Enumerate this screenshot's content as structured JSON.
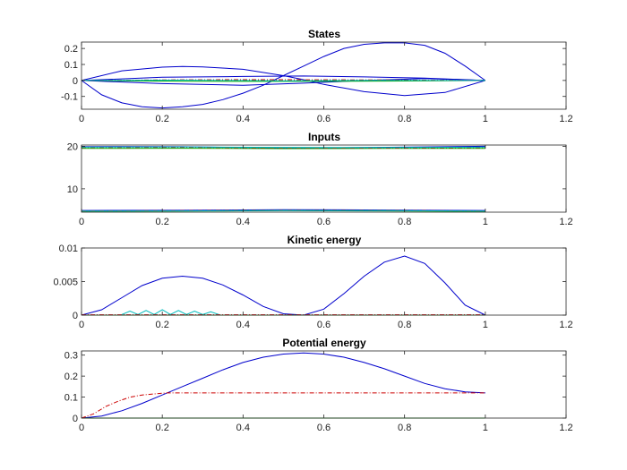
{
  "chart_data": [
    {
      "type": "line",
      "title": "States",
      "xlabel": "",
      "ylabel": "",
      "xlim": [
        0,
        1.2
      ],
      "ylim": [
        -0.18,
        0.24
      ],
      "xticks": [
        0,
        0.2,
        0.4,
        0.6,
        0.8,
        1,
        1.2
      ],
      "yticks": [
        -0.1,
        0,
        0.1,
        0.2
      ],
      "xtick_labels": [
        "0",
        "0.2",
        "0.4",
        "0.6",
        "0.8",
        "1",
        "1.2"
      ],
      "ytick_labels": [
        "-0.1",
        "0",
        "0.1",
        "0.2"
      ],
      "grid": false,
      "series": [
        {
          "color": "#0000cc",
          "style": "solid",
          "x": [
            0,
            0.05,
            0.1,
            0.15,
            0.2,
            0.25,
            0.3,
            0.35,
            0.4,
            0.45,
            0.5,
            0.55,
            0.6,
            0.65,
            0.7,
            0.75,
            0.8,
            0.85,
            0.9,
            0.95,
            1
          ],
          "values": [
            0,
            -0.09,
            -0.14,
            -0.165,
            -0.172,
            -0.165,
            -0.15,
            -0.12,
            -0.08,
            -0.03,
            0.03,
            0.09,
            0.15,
            0.2,
            0.226,
            0.235,
            0.235,
            0.22,
            0.17,
            0.09,
            0
          ]
        },
        {
          "color": "#0000cc",
          "style": "solid",
          "x": [
            0,
            0.1,
            0.2,
            0.25,
            0.3,
            0.4,
            0.5,
            0.55,
            0.6,
            0.7,
            0.8,
            0.9,
            1
          ],
          "values": [
            0,
            0.06,
            0.083,
            0.087,
            0.085,
            0.07,
            0.03,
            0.005,
            -0.025,
            -0.07,
            -0.095,
            -0.075,
            0
          ]
        },
        {
          "color": "#0000cc",
          "style": "solid",
          "x": [
            0,
            0.2,
            0.4,
            0.55,
            0.7,
            0.85,
            1
          ],
          "values": [
            0,
            -0.02,
            -0.03,
            -0.017,
            0.0,
            0.012,
            0
          ]
        },
        {
          "color": "#0000cc",
          "style": "solid",
          "x": [
            0,
            0.2,
            0.4,
            0.55,
            0.7,
            0.85,
            1
          ],
          "values": [
            0,
            0.02,
            0.025,
            0.028,
            0.022,
            0.015,
            0
          ]
        },
        {
          "color": "#00aa00",
          "style": "solid",
          "x": [
            0,
            0.25,
            0.5,
            0.75,
            1
          ],
          "values": [
            0,
            -0.005,
            -0.006,
            -0.004,
            0
          ]
        },
        {
          "color": "#cc0000",
          "style": "dashdot",
          "x": [
            0,
            0.25,
            0.5,
            0.75,
            1
          ],
          "values": [
            0,
            0.004,
            0.005,
            0.003,
            0
          ]
        },
        {
          "color": "#00bbbb",
          "style": "solid",
          "x": [
            0,
            0.25,
            0.5,
            0.75,
            1
          ],
          "values": [
            0,
            0.002,
            -0.002,
            0.001,
            0
          ]
        }
      ]
    },
    {
      "type": "line",
      "title": "Inputs",
      "xlabel": "",
      "ylabel": "",
      "xlim": [
        0,
        1.2
      ],
      "ylim": [
        4.5,
        20.3
      ],
      "xticks": [
        0,
        0.2,
        0.4,
        0.6,
        0.8,
        1,
        1.2
      ],
      "yticks": [
        10,
        20
      ],
      "xtick_labels": [
        "0",
        "0.2",
        "0.4",
        "0.6",
        "0.8",
        "1",
        "1.2"
      ],
      "ytick_labels": [
        "10",
        "20"
      ],
      "grid": false,
      "series": [
        {
          "color": "#0000cc",
          "style": "solid",
          "x": [
            0,
            0.1,
            0.25,
            0.4,
            0.55,
            0.7,
            0.85,
            1
          ],
          "values": [
            19.9,
            19.95,
            19.9,
            19.7,
            19.6,
            19.7,
            19.85,
            20.0
          ]
        },
        {
          "color": "#00aa00",
          "style": "solid",
          "x": [
            0,
            0.25,
            0.5,
            0.75,
            1
          ],
          "values": [
            19.5,
            19.55,
            19.45,
            19.5,
            19.5
          ]
        },
        {
          "color": "#cc0000",
          "style": "dashdot",
          "x": [
            0,
            0.25,
            0.5,
            0.75,
            1
          ],
          "values": [
            19.7,
            19.75,
            19.65,
            19.6,
            19.7
          ]
        },
        {
          "color": "#00bbbb",
          "style": "solid",
          "x": [
            0,
            0.25,
            0.5,
            0.75,
            1
          ],
          "values": [
            19.8,
            19.85,
            19.75,
            19.7,
            19.8
          ]
        },
        {
          "color": "#0000cc",
          "style": "solid",
          "x": [
            0,
            0.25,
            0.5,
            0.75,
            1
          ],
          "values": [
            4.9,
            4.95,
            5.1,
            5.0,
            4.9
          ]
        },
        {
          "color": "#00aa00",
          "style": "solid",
          "x": [
            0,
            0.25,
            0.5,
            0.75,
            1
          ],
          "values": [
            4.7,
            4.75,
            4.85,
            4.8,
            4.7
          ]
        },
        {
          "color": "#cc0000",
          "style": "dashdot",
          "x": [
            0,
            0.25,
            0.5,
            0.75,
            1
          ],
          "values": [
            4.8,
            4.85,
            4.95,
            4.9,
            4.8
          ]
        },
        {
          "color": "#00bbbb",
          "style": "solid",
          "x": [
            0,
            0.25,
            0.5,
            0.75,
            1
          ],
          "values": [
            4.75,
            4.8,
            4.9,
            4.85,
            4.75
          ]
        }
      ]
    },
    {
      "type": "line",
      "title": "Kinetic energy",
      "xlabel": "",
      "ylabel": "",
      "xlim": [
        0,
        1.2
      ],
      "ylim": [
        0,
        0.01
      ],
      "xticks": [
        0,
        0.2,
        0.4,
        0.6,
        0.8,
        1,
        1.2
      ],
      "yticks": [
        0,
        0.005,
        0.01
      ],
      "xtick_labels": [
        "0",
        "0.2",
        "0.4",
        "0.6",
        "0.8",
        "1",
        "1.2"
      ],
      "ytick_labels": [
        "0",
        "0.005",
        "0.01"
      ],
      "grid": false,
      "series": [
        {
          "color": "#0000cc",
          "style": "solid",
          "x": [
            0,
            0.05,
            0.1,
            0.15,
            0.2,
            0.25,
            0.3,
            0.35,
            0.4,
            0.45,
            0.5,
            0.55,
            0.6,
            0.65,
            0.7,
            0.75,
            0.8,
            0.85,
            0.9,
            0.95,
            1
          ],
          "values": [
            0,
            0.0008,
            0.0026,
            0.0044,
            0.0055,
            0.0058,
            0.0055,
            0.0045,
            0.003,
            0.0013,
            0.0002,
            0,
            0.0009,
            0.0032,
            0.0058,
            0.0079,
            0.0088,
            0.0077,
            0.0048,
            0.0015,
            0
          ]
        },
        {
          "color": "#00bbbb",
          "style": "solid",
          "x": [
            0.1,
            0.12,
            0.14,
            0.16,
            0.18,
            0.2,
            0.22,
            0.24,
            0.26,
            0.28,
            0.3,
            0.32,
            0.34
          ],
          "values": [
            0.0001,
            0.0006,
            0.0001,
            0.0007,
            0.0001,
            0.0008,
            0.0001,
            0.0007,
            0.0001,
            0.0006,
            0.0001,
            0.0005,
            0.0001
          ]
        },
        {
          "color": "#00aa00",
          "style": "solid",
          "x": [
            0,
            0.5,
            1
          ],
          "values": [
            0,
            0,
            0
          ]
        },
        {
          "color": "#cc0000",
          "style": "dashdot",
          "x": [
            0,
            0.5,
            1
          ],
          "values": [
            5e-05,
            5e-05,
            5e-05
          ]
        }
      ]
    },
    {
      "type": "line",
      "title": "Potential energy",
      "xlabel": "",
      "ylabel": "",
      "xlim": [
        0,
        1.2
      ],
      "ylim": [
        0,
        0.32
      ],
      "xticks": [
        0,
        0.2,
        0.4,
        0.6,
        0.8,
        1,
        1.2
      ],
      "yticks": [
        0,
        0.1,
        0.2,
        0.3
      ],
      "xtick_labels": [
        "0",
        "0.2",
        "0.4",
        "0.6",
        "0.8",
        "1",
        "1.2"
      ],
      "ytick_labels": [
        "0",
        "0.1",
        "0.2",
        "0.3"
      ],
      "grid": false,
      "series": [
        {
          "color": "#0000cc",
          "style": "solid",
          "x": [
            0,
            0.05,
            0.1,
            0.15,
            0.2,
            0.25,
            0.3,
            0.35,
            0.4,
            0.45,
            0.5,
            0.55,
            0.6,
            0.65,
            0.7,
            0.75,
            0.8,
            0.85,
            0.9,
            0.95,
            1
          ],
          "values": [
            0,
            0.01,
            0.035,
            0.07,
            0.11,
            0.15,
            0.19,
            0.23,
            0.265,
            0.29,
            0.305,
            0.31,
            0.305,
            0.29,
            0.265,
            0.235,
            0.2,
            0.165,
            0.14,
            0.125,
            0.12
          ]
        },
        {
          "color": "#cc0000",
          "style": "dashdot",
          "x": [
            0,
            0.03,
            0.06,
            0.09,
            0.12,
            0.15,
            0.18,
            0.21,
            0.3,
            0.5,
            0.7,
            1
          ],
          "values": [
            0,
            0.02,
            0.055,
            0.08,
            0.1,
            0.11,
            0.115,
            0.12,
            0.12,
            0.12,
            0.12,
            0.12
          ]
        },
        {
          "color": "#00aa00",
          "style": "solid",
          "x": [
            0,
            0.5,
            1
          ],
          "values": [
            0,
            0,
            0
          ]
        }
      ]
    }
  ]
}
